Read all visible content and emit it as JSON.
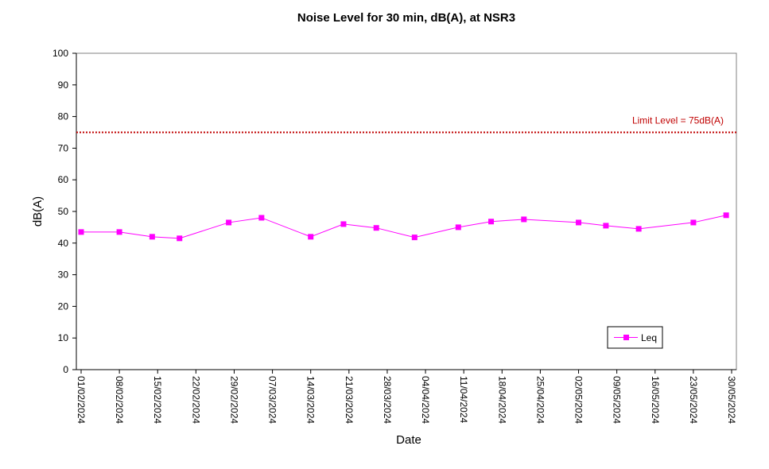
{
  "chart_data": {
    "type": "line",
    "title": "Noise Level for 30 min, dB(A), at NSR3",
    "xlabel": "Date",
    "ylabel": "dB(A)",
    "ylim": [
      0,
      100
    ],
    "yticks": [
      0,
      10,
      20,
      30,
      40,
      50,
      60,
      70,
      80,
      90,
      100
    ],
    "xlim": [
      "2024-02-01",
      "2024-05-30"
    ],
    "xticks": [
      "01/02/2024",
      "08/02/2024",
      "15/02/2024",
      "22/02/2024",
      "29/02/2024",
      "07/03/2024",
      "14/03/2024",
      "21/03/2024",
      "28/03/2024",
      "04/04/2024",
      "11/04/2024",
      "18/04/2024",
      "25/04/2024",
      "02/05/2024",
      "09/05/2024",
      "16/05/2024",
      "23/05/2024",
      "30/05/2024"
    ],
    "grid": false,
    "series": [
      {
        "name": "Leq",
        "color": "#ff00ff",
        "marker": "square",
        "x": [
          "2024-02-01",
          "2024-02-08",
          "2024-02-14",
          "2024-02-19",
          "2024-02-28",
          "2024-03-05",
          "2024-03-14",
          "2024-03-20",
          "2024-03-26",
          "2024-04-02",
          "2024-04-10",
          "2024-04-16",
          "2024-04-22",
          "2024-05-02",
          "2024-05-07",
          "2024-05-13",
          "2024-05-23",
          "2024-05-29"
        ],
        "y": [
          43.5,
          43.5,
          42.0,
          41.5,
          46.5,
          48.0,
          42.0,
          46.0,
          44.8,
          41.8,
          45.0,
          46.8,
          47.5,
          46.5,
          45.5,
          44.5,
          46.5,
          48.8
        ]
      }
    ],
    "reference_lines": [
      {
        "label": "Limit Level  = 75dB(A)",
        "y": 75,
        "color": "#c00000",
        "style": "dotted"
      }
    ],
    "legend": {
      "position": "bottom-right",
      "entries": [
        "Leq"
      ]
    }
  }
}
